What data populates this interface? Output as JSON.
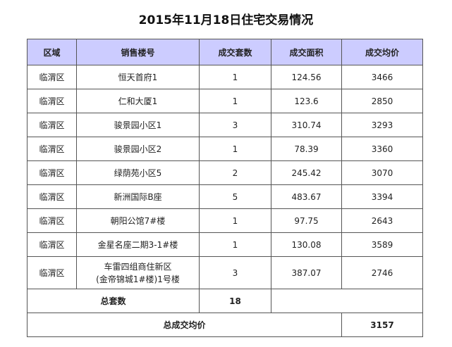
{
  "title": "2015年11月18日住宅交易情况",
  "table": {
    "header": [
      "区域",
      "销售楼号",
      "成交套数",
      "成交面积",
      "成交均价"
    ],
    "rows": [
      [
        "临渭区",
        "恒天首府1",
        "1",
        "124.56",
        "3466"
      ],
      [
        "临渭区",
        "仁和大厦1",
        "1",
        "123.6",
        "2850"
      ],
      [
        "临渭区",
        "骏景园小区1",
        "3",
        "310.74",
        "3293"
      ],
      [
        "临渭区",
        "骏景园小区2",
        "1",
        "78.39",
        "3360"
      ],
      [
        "临渭区",
        "绿荫苑小区5",
        "2",
        "245.42",
        "3070"
      ],
      [
        "临渭区",
        "新洲国际B座",
        "5",
        "483.67",
        "3394"
      ],
      [
        "临渭区",
        "朝阳公馆7#楼",
        "1",
        "97.75",
        "2643"
      ],
      [
        "临渭区",
        "金星名座二期3-1#楼",
        "1",
        "130.08",
        "3589"
      ],
      [
        "临渭区",
        "车雷四组商住新区\n(金帝锦城1#楼)1号楼",
        "3",
        "387.07",
        "2746"
      ]
    ],
    "total_units_label": "总套数",
    "total_units": "18",
    "avg_price_label": "总成交均价",
    "avg_price": "3157"
  }
}
